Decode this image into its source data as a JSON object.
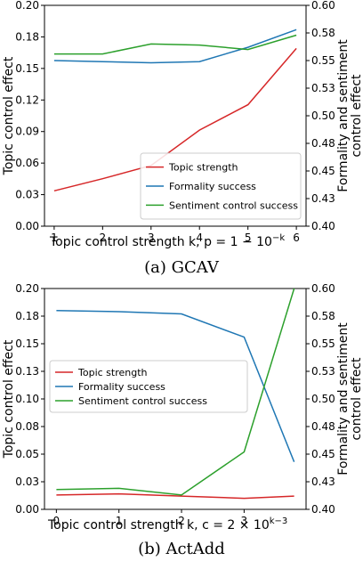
{
  "chart_data": [
    {
      "type": "line",
      "caption": "(a) GCAV",
      "xlabel": "Topic control strength k,  p = 1 − 10",
      "xlabel_sup": "−k",
      "ylabel_left": "Topic control effect",
      "ylabel_right": [
        "Formality and sentiment",
        "control effect"
      ],
      "x": [
        1,
        2,
        3,
        4,
        5,
        6
      ],
      "xlim": [
        0.8,
        6.2
      ],
      "xticks": [
        "1",
        "2",
        "3",
        "4",
        "5",
        "6"
      ],
      "ylim_left": [
        0.0,
        0.2
      ],
      "yticks_left": [
        "0.00",
        "0.03",
        "0.06",
        "0.09",
        "0.12",
        "0.15",
        "0.18",
        "0.20"
      ],
      "ylim_right": [
        0.4,
        0.6
      ],
      "yticks_right": [
        "0.40",
        "0.43",
        "0.45",
        "0.48",
        "0.50",
        "0.53",
        "0.55",
        "0.58",
        "0.60"
      ],
      "legend_position": "lower-right",
      "series": [
        {
          "name": "Topic strength",
          "axis": "left",
          "color": "#d62728",
          "values": [
            0.032,
            0.043,
            0.055,
            0.087,
            0.11,
            0.161
          ]
        },
        {
          "name": "Formality success",
          "axis": "right",
          "color": "#1f77b4",
          "values": [
            0.55,
            0.549,
            0.548,
            0.549,
            0.562,
            0.578
          ]
        },
        {
          "name": "Sentiment control success",
          "axis": "right",
          "color": "#2ca02c",
          "values": [
            0.556,
            0.556,
            0.565,
            0.564,
            0.56,
            0.573
          ]
        }
      ]
    },
    {
      "type": "line",
      "caption": "(b) ActAdd",
      "xlabel": "Topic control strength k,  c = 2 × 10",
      "xlabel_sup": "k−3",
      "ylabel_left": "Topic control effect",
      "ylabel_right": [
        "Formality and sentiment",
        "control effect"
      ],
      "x": [
        0,
        1,
        2,
        3,
        3.8
      ],
      "xlim": [
        -0.19,
        3.99
      ],
      "xticks": [
        "0",
        "1",
        "2",
        "3"
      ],
      "ylim_left": [
        0.0,
        0.2
      ],
      "yticks_left": [
        "0.00",
        "0.03",
        "0.05",
        "0.08",
        "0.10",
        "0.13",
        "0.15",
        "0.18",
        "0.20"
      ],
      "ylim_right": [
        0.4,
        0.6
      ],
      "yticks_right": [
        "0.40",
        "0.43",
        "0.45",
        "0.48",
        "0.50",
        "0.53",
        "0.55",
        "0.58",
        "0.60"
      ],
      "legend_position": "center-left",
      "series": [
        {
          "name": "Topic strength",
          "axis": "left",
          "color": "#d62728",
          "values": [
            0.013,
            0.014,
            0.012,
            0.01,
            0.012
          ]
        },
        {
          "name": "Formality success",
          "axis": "right",
          "color": "#1f77b4",
          "values": [
            0.58,
            0.579,
            0.577,
            0.556,
            0.443
          ]
        },
        {
          "name": "Sentiment control success",
          "axis": "right",
          "color": "#2ca02c",
          "values": [
            0.418,
            0.419,
            0.413,
            0.452,
            0.6
          ]
        }
      ]
    }
  ]
}
